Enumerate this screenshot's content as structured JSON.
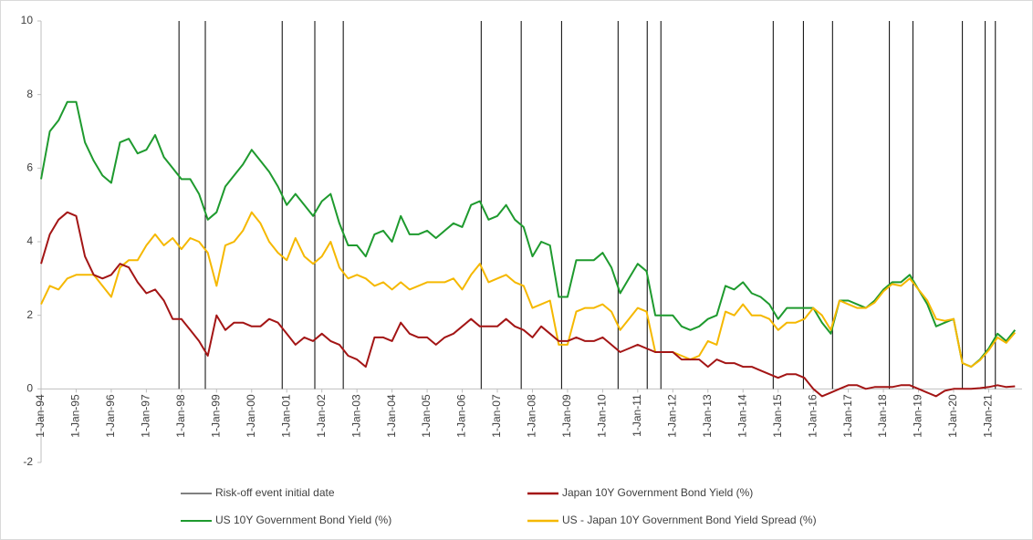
{
  "chart_data": {
    "type": "line",
    "x": [
      1994,
      1994.25,
      1994.5,
      1994.75,
      1995,
      1995.25,
      1995.5,
      1995.75,
      1996,
      1996.25,
      1996.5,
      1996.75,
      1997,
      1997.25,
      1997.5,
      1997.75,
      1998,
      1998.25,
      1998.5,
      1998.75,
      1999,
      1999.25,
      1999.5,
      1999.75,
      2000,
      2000.25,
      2000.5,
      2000.75,
      2001,
      2001.25,
      2001.5,
      2001.75,
      2002,
      2002.25,
      2002.5,
      2002.75,
      2003,
      2003.25,
      2003.5,
      2003.75,
      2004,
      2004.25,
      2004.5,
      2004.75,
      2005,
      2005.25,
      2005.5,
      2005.75,
      2006,
      2006.25,
      2006.5,
      2006.75,
      2007,
      2007.25,
      2007.5,
      2007.75,
      2008,
      2008.25,
      2008.5,
      2008.75,
      2009,
      2009.25,
      2009.5,
      2009.75,
      2010,
      2010.25,
      2010.5,
      2010.75,
      2011,
      2011.25,
      2011.5,
      2011.75,
      2012,
      2012.25,
      2012.5,
      2012.75,
      2013,
      2013.25,
      2013.5,
      2013.75,
      2014,
      2014.25,
      2014.5,
      2014.75,
      2015,
      2015.25,
      2015.5,
      2015.75,
      2016,
      2016.25,
      2016.5,
      2016.75,
      2017,
      2017.25,
      2017.5,
      2017.75,
      2018,
      2018.25,
      2018.5,
      2018.75,
      2019,
      2019.25,
      2019.5,
      2019.75,
      2020,
      2020.25,
      2020.5,
      2020.75,
      2021,
      2021.25,
      2021.5,
      2021.75
    ],
    "series": [
      {
        "name": "US 10Y Government Bond Yield (%)",
        "color": "#1e9a2e",
        "values": [
          5.7,
          7.0,
          7.3,
          7.8,
          7.8,
          6.7,
          6.2,
          5.8,
          5.6,
          6.7,
          6.8,
          6.4,
          6.5,
          6.9,
          6.3,
          6.0,
          5.7,
          5.7,
          5.3,
          4.6,
          4.8,
          5.5,
          5.8,
          6.1,
          6.5,
          6.2,
          5.9,
          5.5,
          5.0,
          5.3,
          5.0,
          4.7,
          5.1,
          5.3,
          4.5,
          3.9,
          3.9,
          3.6,
          4.2,
          4.3,
          4.0,
          4.7,
          4.2,
          4.2,
          4.3,
          4.1,
          4.3,
          4.5,
          4.4,
          5.0,
          5.1,
          4.6,
          4.7,
          5.0,
          4.6,
          4.4,
          3.6,
          4.0,
          3.9,
          2.5,
          2.5,
          3.5,
          3.5,
          3.5,
          3.7,
          3.3,
          2.6,
          3.0,
          3.4,
          3.2,
          2.0,
          2.0,
          2.0,
          1.7,
          1.6,
          1.7,
          1.9,
          2.0,
          2.8,
          2.7,
          2.9,
          2.6,
          2.5,
          2.3,
          1.9,
          2.2,
          2.2,
          2.2,
          2.2,
          1.8,
          1.5,
          2.4,
          2.4,
          2.3,
          2.2,
          2.4,
          2.7,
          2.9,
          2.9,
          3.1,
          2.7,
          2.3,
          1.7,
          1.8,
          1.9,
          0.7,
          0.6,
          0.8,
          1.1,
          1.5,
          1.3,
          1.6
        ]
      },
      {
        "name": "US - Japan 10Y Government Bond Yield Spread (%)",
        "color": "#f5b800",
        "values": [
          2.3,
          2.8,
          2.7,
          3.0,
          3.1,
          3.1,
          3.1,
          2.8,
          2.5,
          3.3,
          3.5,
          3.5,
          3.9,
          4.2,
          3.9,
          4.1,
          3.8,
          4.1,
          4.0,
          3.7,
          2.8,
          3.9,
          4.0,
          4.3,
          4.8,
          4.5,
          4.0,
          3.7,
          3.5,
          4.1,
          3.6,
          3.4,
          3.6,
          4.0,
          3.3,
          3.0,
          3.1,
          3.0,
          2.8,
          2.9,
          2.7,
          2.9,
          2.7,
          2.8,
          2.9,
          2.9,
          2.9,
          3.0,
          2.7,
          3.1,
          3.4,
          2.9,
          3.0,
          3.1,
          2.9,
          2.8,
          2.2,
          2.3,
          2.4,
          1.2,
          1.2,
          2.1,
          2.2,
          2.2,
          2.3,
          2.1,
          1.6,
          1.9,
          2.2,
          2.1,
          1.0,
          1.0,
          1.0,
          0.9,
          0.8,
          0.9,
          1.3,
          1.2,
          2.1,
          2.0,
          2.3,
          2.0,
          2.0,
          1.9,
          1.6,
          1.8,
          1.8,
          1.9,
          2.2,
          2.0,
          1.6,
          2.4,
          2.3,
          2.2,
          2.2,
          2.35,
          2.65,
          2.85,
          2.8,
          3.0,
          2.7,
          2.4,
          1.9,
          1.85,
          1.9,
          0.7,
          0.6,
          0.78,
          1.05,
          1.4,
          1.25,
          1.53
        ]
      },
      {
        "name": "Japan 10Y Government Bond Yield (%)",
        "color": "#a31515",
        "values": [
          3.4,
          4.2,
          4.6,
          4.8,
          4.7,
          3.6,
          3.1,
          3.0,
          3.1,
          3.4,
          3.3,
          2.9,
          2.6,
          2.7,
          2.4,
          1.9,
          1.9,
          1.6,
          1.3,
          0.9,
          2.0,
          1.6,
          1.8,
          1.8,
          1.7,
          1.7,
          1.9,
          1.8,
          1.5,
          1.2,
          1.4,
          1.3,
          1.5,
          1.3,
          1.2,
          0.9,
          0.8,
          0.6,
          1.4,
          1.4,
          1.3,
          1.8,
          1.5,
          1.4,
          1.4,
          1.2,
          1.4,
          1.5,
          1.7,
          1.9,
          1.7,
          1.7,
          1.7,
          1.9,
          1.7,
          1.6,
          1.4,
          1.7,
          1.5,
          1.3,
          1.3,
          1.4,
          1.3,
          1.3,
          1.4,
          1.2,
          1.0,
          1.1,
          1.2,
          1.1,
          1.0,
          1.0,
          1.0,
          0.8,
          0.8,
          0.8,
          0.6,
          0.8,
          0.7,
          0.7,
          0.6,
          0.6,
          0.5,
          0.4,
          0.3,
          0.4,
          0.4,
          0.3,
          0.0,
          -0.2,
          -0.1,
          0.0,
          0.1,
          0.1,
          0.0,
          0.05,
          0.05,
          0.05,
          0.1,
          0.1,
          0.0,
          -0.1,
          -0.2,
          -0.05,
          0.0,
          0.0,
          0.0,
          0.02,
          0.05,
          0.1,
          0.05,
          0.07
        ]
      }
    ],
    "events": {
      "name": "Risk-off event initial date",
      "color": "#000000",
      "x": [
        1997.93,
        1998.68,
        2000.87,
        2001.8,
        2002.61,
        2006.54,
        2007.68,
        2008.83,
        2010.44,
        2011.27,
        2011.66,
        2014.86,
        2015.72,
        2016.55,
        2018.17,
        2018.84,
        2020.25,
        2020.9,
        2021.19
      ]
    },
    "xlim": [
      1994,
      2021.95
    ],
    "xticks": [
      {
        "value": 1994,
        "label": "1-Jan-94"
      },
      {
        "value": 1995,
        "label": "1-Jan-95"
      },
      {
        "value": 1996,
        "label": "1-Jan-96"
      },
      {
        "value": 1997,
        "label": "1-Jan-97"
      },
      {
        "value": 1998,
        "label": "1-Jan-98"
      },
      {
        "value": 1999,
        "label": "1-Jan-99"
      },
      {
        "value": 2000,
        "label": "1-Jan-00"
      },
      {
        "value": 2001,
        "label": "1-Jan-01"
      },
      {
        "value": 2002,
        "label": "1-Jan-02"
      },
      {
        "value": 2003,
        "label": "1-Jan-03"
      },
      {
        "value": 2004,
        "label": "1-Jan-04"
      },
      {
        "value": 2005,
        "label": "1-Jan-05"
      },
      {
        "value": 2006,
        "label": "1-Jan-06"
      },
      {
        "value": 2007,
        "label": "1-Jan-07"
      },
      {
        "value": 2008,
        "label": "1-Jan-08"
      },
      {
        "value": 2009,
        "label": "1-Jan-09"
      },
      {
        "value": 2010,
        "label": "1-Jan-10"
      },
      {
        "value": 2011,
        "label": "1-Jan-11"
      },
      {
        "value": 2012,
        "label": "1-Jan-12"
      },
      {
        "value": 2013,
        "label": "1-Jan-13"
      },
      {
        "value": 2014,
        "label": "1-Jan-14"
      },
      {
        "value": 2015,
        "label": "1-Jan-15"
      },
      {
        "value": 2016,
        "label": "1-Jan-16"
      },
      {
        "value": 2017,
        "label": "1-Jan-17"
      },
      {
        "value": 2018,
        "label": "1-Jan-18"
      },
      {
        "value": 2019,
        "label": "1-Jan-19"
      },
      {
        "value": 2020,
        "label": "1-Jan-20"
      },
      {
        "value": 2021,
        "label": "1-Jan-21"
      }
    ],
    "ylim": [
      -2,
      10
    ],
    "yticks": [
      -2,
      0,
      2,
      4,
      6,
      8,
      10
    ],
    "grid": false
  }
}
